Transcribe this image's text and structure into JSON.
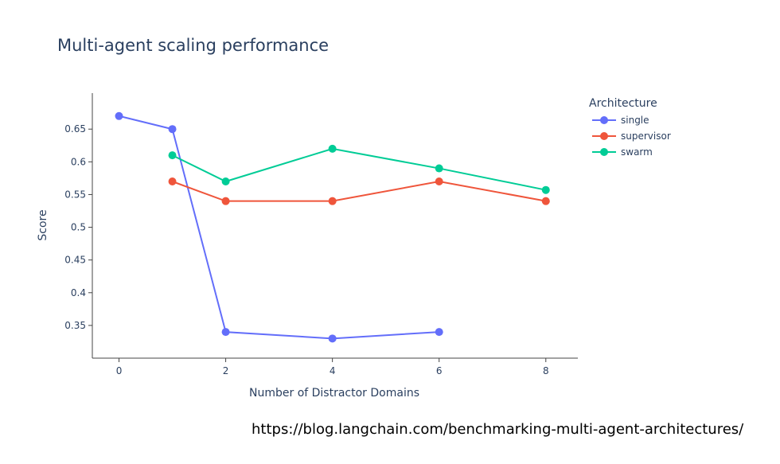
{
  "chart_data": {
    "type": "line",
    "title": "Multi-agent scaling performance",
    "xlabel": "Number of Distractor Domains",
    "ylabel": "Score",
    "xlim": [
      -0.5,
      8.6
    ],
    "ylim": [
      0.3,
      0.705
    ],
    "xticks": [
      0,
      2,
      4,
      6,
      8
    ],
    "xtick_labels": [
      "0",
      "2",
      "4",
      "6",
      "8"
    ],
    "yticks": [
      0.35,
      0.4,
      0.45,
      0.5,
      0.55,
      0.6,
      0.65
    ],
    "ytick_labels": [
      "0.35",
      "0.4",
      "0.45",
      "0.5",
      "0.55",
      "0.6",
      "0.65"
    ],
    "grid": false,
    "legend": {
      "title": "Architecture",
      "placement": "top-right"
    },
    "series": [
      {
        "name": "single",
        "color": "#636efa",
        "x": [
          0,
          1,
          2,
          4,
          6
        ],
        "values": [
          0.67,
          0.65,
          0.34,
          0.33,
          0.34
        ]
      },
      {
        "name": "supervisor",
        "color": "#ef553b",
        "x": [
          1,
          2,
          4,
          6,
          8
        ],
        "values": [
          0.57,
          0.54,
          0.54,
          0.57,
          0.54
        ]
      },
      {
        "name": "swarm",
        "color": "#00cc96",
        "x": [
          1,
          2,
          4,
          6,
          8
        ],
        "values": [
          0.61,
          0.57,
          0.62,
          0.59,
          0.557
        ]
      }
    ]
  },
  "source_url": "https://blog.langchain.com/benchmarking-multi-agent-architectures/"
}
